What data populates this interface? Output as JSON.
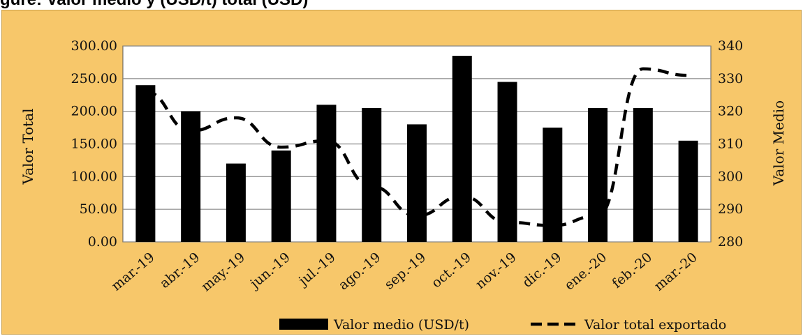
{
  "heading_fragment": "gure: Valor medio y (USD/t) total (USD)",
  "chart_data": {
    "type": "bar",
    "categories": [
      "mar.-19",
      "abr.-19",
      "may.-19",
      "jun.-19",
      "jul.-19",
      "ago.-19",
      "sep.-19",
      "oct.-19",
      "nov.-19",
      "dic.-19",
      "ene.-20",
      "feb.-20",
      "mar.-20"
    ],
    "series": [
      {
        "name": "Valor medio (USD/t)",
        "type": "bar",
        "axis": "left",
        "values": [
          240,
          200,
          120,
          140,
          210,
          205,
          180,
          285,
          245,
          175,
          205,
          205,
          155
        ]
      },
      {
        "name": "Valor total exportado",
        "type": "line",
        "style": "dashed",
        "axis": "right",
        "values": [
          326,
          314,
          318,
          309,
          311,
          297,
          288,
          294,
          286,
          285,
          288,
          333,
          331
        ]
      }
    ],
    "ylabel": "Valor Total",
    "y2label": "Valor Medio",
    "ylim": [
      0,
      300
    ],
    "y2lim": [
      280,
      340
    ],
    "yticks": [
      "0.00",
      "50.00",
      "100.00",
      "150.00",
      "200.00",
      "250.00",
      "300.00"
    ],
    "y2ticks": [
      "280",
      "290",
      "300",
      "310",
      "320",
      "330",
      "340"
    ],
    "grid": true,
    "legend_position": "bottom-right",
    "colors": {
      "background": "#f7c76a",
      "plot_area": "#ffffff",
      "bar": "#000000",
      "line": "#000000",
      "grid": "#888888"
    }
  }
}
